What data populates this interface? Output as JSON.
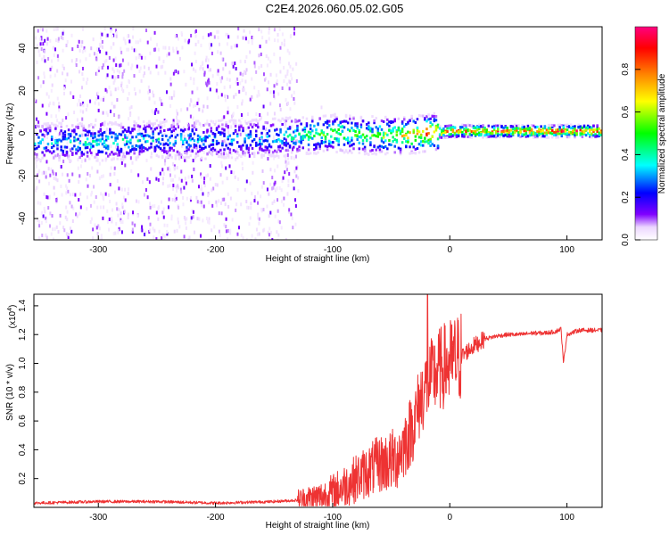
{
  "title": "C2E4.2026.060.05.02.G05",
  "chart_data": [
    {
      "type": "heatmap",
      "xlabel": "Height of straight line (km)",
      "ylabel": "Frequency (Hz)",
      "xlim": [
        -355,
        130
      ],
      "ylim": [
        -50,
        50
      ],
      "xticks": [
        -300,
        -200,
        -100,
        0,
        100
      ],
      "yticks": [
        -40,
        -20,
        0,
        20,
        40
      ],
      "colorbar": {
        "label": "Normalized spectral amplitude",
        "range": [
          0,
          1
        ],
        "ticks": [
          0.0,
          0.2,
          0.4,
          0.6,
          0.8
        ],
        "tick_labels": [
          "0.0",
          "0.2",
          "0.4",
          "0.6",
          "0.8"
        ],
        "colors": [
          "#ffffff",
          "#8000ff",
          "#0000ff",
          "#00ffff",
          "#00ff00",
          "#ffff00",
          "#ff8000",
          "#ff0000",
          "#ff0080"
        ]
      },
      "signal_track": {
        "x": [
          -355,
          -300,
          -250,
          -200,
          -150,
          -100,
          -70,
          -40,
          -20,
          0,
          50,
          100,
          130
        ],
        "center_freq": [
          -4,
          -4,
          -3,
          -3,
          -2,
          0,
          -1,
          -1,
          0,
          1,
          1,
          1,
          1
        ],
        "peak_amplitude": [
          0.4,
          0.45,
          0.4,
          0.35,
          0.4,
          0.6,
          0.55,
          0.75,
          0.95,
          0.9,
          0.95,
          0.97,
          0.95
        ]
      }
    },
    {
      "type": "line",
      "xlabel": "Height of straight line (km)",
      "ylabel": "SNR (10 * v/v)",
      "yscale_label": "(x10",
      "yscale_exp": "4",
      "yscale_close": ")",
      "xlim": [
        -355,
        130
      ],
      "ylim": [
        0,
        1.48
      ],
      "xticks": [
        -300,
        -200,
        -100,
        0,
        100
      ],
      "yticks": [
        0.2,
        0.4,
        0.6,
        0.8,
        1.0,
        1.2,
        1.4
      ],
      "series": [
        {
          "name": "SNR",
          "color": "#ee3333",
          "x": [
            -355,
            -300,
            -250,
            -200,
            -150,
            -130,
            -110,
            -100,
            -90,
            -80,
            -70,
            -60,
            -50,
            -45,
            -40,
            -35,
            -30,
            -25,
            -20,
            -15,
            -10,
            -5,
            0,
            10,
            20,
            30,
            40,
            50,
            60,
            70,
            80,
            90,
            95,
            97,
            100,
            110,
            120,
            130
          ],
          "y": [
            0.03,
            0.04,
            0.04,
            0.03,
            0.04,
            0.05,
            0.07,
            0.1,
            0.15,
            0.2,
            0.25,
            0.3,
            0.32,
            0.35,
            0.42,
            0.5,
            0.6,
            0.75,
            0.85,
            0.9,
            0.95,
            0.98,
            1.0,
            1.05,
            1.12,
            1.17,
            1.19,
            1.2,
            1.2,
            1.21,
            1.21,
            1.22,
            1.24,
            1.0,
            1.2,
            1.23,
            1.23,
            1.23
          ]
        }
      ],
      "spike": {
        "x": -19,
        "y": 1.48
      }
    }
  ]
}
